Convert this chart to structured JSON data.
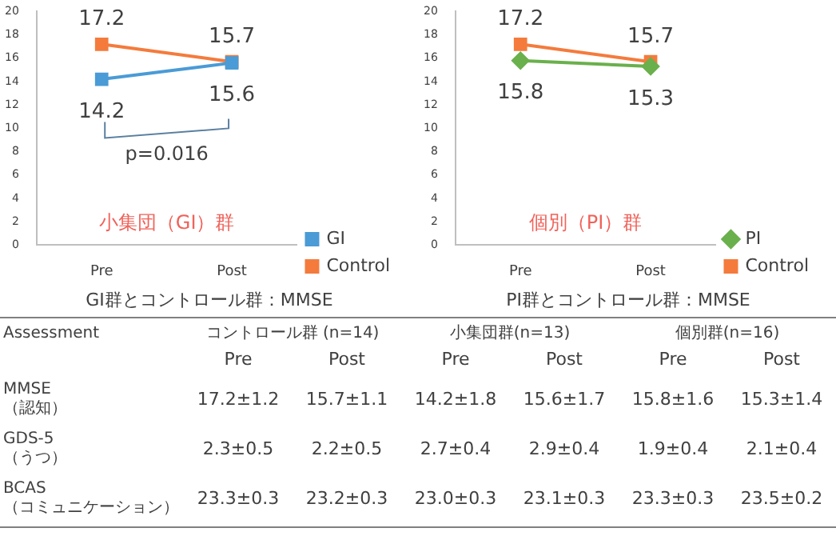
{
  "chart_data": [
    {
      "type": "line",
      "title": "GI群とコントロール群：MMSE",
      "categories": [
        "Pre",
        "Post"
      ],
      "ylim": [
        0,
        20
      ],
      "yticks": [
        0,
        2,
        4,
        6,
        8,
        10,
        12,
        14,
        16,
        18,
        20
      ],
      "legend": "bottom right",
      "data_labels": true,
      "series": [
        {
          "name": "GI",
          "color": "#4a9bd6",
          "marker": "square",
          "values": [
            14.2,
            15.6
          ]
        },
        {
          "name": "Control",
          "color": "#f47b3c",
          "marker": "square",
          "values": [
            17.2,
            15.7
          ]
        }
      ],
      "annotations": [
        "p=0.016",
        "小集団（GI）群"
      ]
    },
    {
      "type": "line",
      "title": "PI群とコントロール群：MMSE",
      "categories": [
        "Pre",
        "Post"
      ],
      "ylim": [
        0,
        20
      ],
      "yticks": [
        0,
        2,
        4,
        6,
        8,
        10,
        12,
        14,
        16,
        18,
        20
      ],
      "legend": "bottom right",
      "data_labels": true,
      "series": [
        {
          "name": "PI",
          "color": "#6ab04c",
          "marker": "diamond",
          "values": [
            15.8,
            15.3
          ]
        },
        {
          "name": "Control",
          "color": "#f47b3c",
          "marker": "square",
          "values": [
            17.2,
            15.7
          ]
        }
      ],
      "annotations": [
        "個別（PI）群"
      ]
    },
    {
      "type": "other",
      "annotations": [
        "Assessment",
        "コントロール群 (n=14)",
        "小集団群(n=13)",
        "個別群(n=16)",
        "Pre",
        "Post",
        "Pre",
        "Post",
        "Pre",
        "Post",
        "MMSE\n（認知）",
        "17.2±1.2",
        "15.7±1.1",
        "14.2±1.8",
        "15.6±1.7",
        "15.8±1.6",
        "15.3±1.4",
        "GDS-5\n（うつ）",
        "2.3±0.5",
        "2.2±0.5",
        "2.7±0.4",
        "2.9±0.4",
        "1.9±0.4",
        "2.1±0.4",
        "BCAS\n（コミュニケーション）",
        "23.3±0.3",
        "23.2±0.3",
        "23.0±0.3",
        "23.1±0.3",
        "23.3±0.3",
        "23.5±0.2"
      ]
    }
  ]
}
